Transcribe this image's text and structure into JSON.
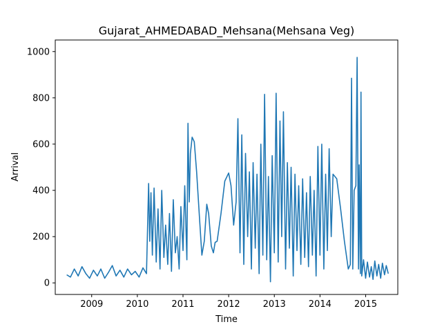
{
  "chart_data": {
    "type": "line",
    "title": "Gujarat_AHMEDABAD_Mehsana(Mehsana Veg)",
    "xlabel": "Time",
    "ylabel": "Arrival",
    "xlim": [
      "2008-03-15",
      "2015-09-15"
    ],
    "ylim": [
      -50,
      1050
    ],
    "x_ticks": [
      "2009",
      "2010",
      "2011",
      "2012",
      "2013",
      "2014",
      "2015"
    ],
    "y_ticks": [
      0,
      200,
      400,
      600,
      800,
      1000
    ],
    "grid": false,
    "legend": "none",
    "series": [
      {
        "color": "#1f77b4",
        "points": [
          [
            "2008-06-15",
            35
          ],
          [
            "2008-07-15",
            25
          ],
          [
            "2008-08-15",
            60
          ],
          [
            "2008-09-15",
            30
          ],
          [
            "2008-10-15",
            70
          ],
          [
            "2008-11-15",
            40
          ],
          [
            "2008-12-15",
            20
          ],
          [
            "2009-01-15",
            55
          ],
          [
            "2009-02-15",
            30
          ],
          [
            "2009-03-15",
            60
          ],
          [
            "2009-04-15",
            20
          ],
          [
            "2009-05-15",
            45
          ],
          [
            "2009-06-15",
            75
          ],
          [
            "2009-07-15",
            30
          ],
          [
            "2009-08-15",
            55
          ],
          [
            "2009-09-15",
            25
          ],
          [
            "2009-10-15",
            60
          ],
          [
            "2009-11-15",
            35
          ],
          [
            "2009-12-15",
            50
          ],
          [
            "2010-01-15",
            25
          ],
          [
            "2010-02-15",
            65
          ],
          [
            "2010-03-15",
            40
          ],
          [
            "2010-04-01",
            430
          ],
          [
            "2010-04-10",
            180
          ],
          [
            "2010-04-20",
            390
          ],
          [
            "2010-05-01",
            120
          ],
          [
            "2010-05-15",
            410
          ],
          [
            "2010-06-01",
            90
          ],
          [
            "2010-06-15",
            320
          ],
          [
            "2010-07-01",
            60
          ],
          [
            "2010-07-15",
            400
          ],
          [
            "2010-08-01",
            110
          ],
          [
            "2010-08-15",
            250
          ],
          [
            "2010-09-01",
            80
          ],
          [
            "2010-09-15",
            300
          ],
          [
            "2010-10-01",
            50
          ],
          [
            "2010-10-15",
            360
          ],
          [
            "2010-11-01",
            130
          ],
          [
            "2010-11-15",
            200
          ],
          [
            "2010-12-01",
            60
          ],
          [
            "2010-12-15",
            330
          ],
          [
            "2011-01-01",
            140
          ],
          [
            "2011-01-15",
            420
          ],
          [
            "2011-02-01",
            100
          ],
          [
            "2011-02-10",
            690
          ],
          [
            "2011-02-20",
            350
          ],
          [
            "2011-03-01",
            560
          ],
          [
            "2011-03-15",
            630
          ],
          [
            "2011-04-01",
            610
          ],
          [
            "2011-04-20",
            480
          ],
          [
            "2011-05-15",
            260
          ],
          [
            "2011-06-01",
            120
          ],
          [
            "2011-06-20",
            180
          ],
          [
            "2011-07-10",
            340
          ],
          [
            "2011-07-25",
            300
          ],
          [
            "2011-08-15",
            160
          ],
          [
            "2011-09-01",
            130
          ],
          [
            "2011-09-15",
            175
          ],
          [
            "2011-10-01",
            180
          ],
          [
            "2011-11-01",
            300
          ],
          [
            "2011-12-01",
            440
          ],
          [
            "2012-01-01",
            475
          ],
          [
            "2012-01-20",
            420
          ],
          [
            "2012-02-10",
            250
          ],
          [
            "2012-03-01",
            350
          ],
          [
            "2012-03-15",
            710
          ],
          [
            "2012-04-01",
            130
          ],
          [
            "2012-04-15",
            640
          ],
          [
            "2012-05-01",
            80
          ],
          [
            "2012-05-15",
            560
          ],
          [
            "2012-06-01",
            200
          ],
          [
            "2012-06-15",
            480
          ],
          [
            "2012-07-01",
            60
          ],
          [
            "2012-07-15",
            520
          ],
          [
            "2012-08-01",
            150
          ],
          [
            "2012-08-15",
            470
          ],
          [
            "2012-09-01",
            40
          ],
          [
            "2012-09-15",
            600
          ],
          [
            "2012-10-01",
            120
          ],
          [
            "2012-10-15",
            815
          ],
          [
            "2012-11-01",
            100
          ],
          [
            "2012-11-15",
            460
          ],
          [
            "2012-12-01",
            5
          ],
          [
            "2012-12-15",
            550
          ],
          [
            "2013-01-01",
            130
          ],
          [
            "2013-01-15",
            820
          ],
          [
            "2013-02-01",
            90
          ],
          [
            "2013-02-15",
            700
          ],
          [
            "2013-03-01",
            200
          ],
          [
            "2013-03-15",
            740
          ],
          [
            "2013-04-01",
            60
          ],
          [
            "2013-04-15",
            520
          ],
          [
            "2013-05-01",
            150
          ],
          [
            "2013-05-15",
            500
          ],
          [
            "2013-06-01",
            30
          ],
          [
            "2013-06-15",
            470
          ],
          [
            "2013-07-01",
            140
          ],
          [
            "2013-07-15",
            420
          ],
          [
            "2013-08-01",
            80
          ],
          [
            "2013-08-15",
            450
          ],
          [
            "2013-09-01",
            110
          ],
          [
            "2013-09-15",
            390
          ],
          [
            "2013-10-01",
            70
          ],
          [
            "2013-10-15",
            460
          ],
          [
            "2013-11-01",
            120
          ],
          [
            "2013-11-15",
            400
          ],
          [
            "2013-12-01",
            30
          ],
          [
            "2013-12-15",
            590
          ],
          [
            "2014-01-01",
            120
          ],
          [
            "2014-01-15",
            600
          ],
          [
            "2014-02-01",
            60
          ],
          [
            "2014-02-15",
            470
          ],
          [
            "2014-03-01",
            140
          ],
          [
            "2014-03-15",
            580
          ],
          [
            "2014-04-01",
            200
          ],
          [
            "2014-04-15",
            470
          ],
          [
            "2014-05-15",
            450
          ],
          [
            "2014-06-15",
            320
          ],
          [
            "2014-07-15",
            180
          ],
          [
            "2014-08-15",
            60
          ],
          [
            "2014-09-01",
            80
          ],
          [
            "2014-09-10",
            885
          ],
          [
            "2014-09-20",
            60
          ],
          [
            "2014-10-01",
            400
          ],
          [
            "2014-10-15",
            420
          ],
          [
            "2014-10-25",
            975
          ],
          [
            "2014-11-05",
            60
          ],
          [
            "2014-11-10",
            510
          ],
          [
            "2014-11-20",
            40
          ],
          [
            "2014-11-25",
            825
          ],
          [
            "2014-12-01",
            30
          ],
          [
            "2014-12-15",
            100
          ],
          [
            "2015-01-01",
            20
          ],
          [
            "2015-01-15",
            90
          ],
          [
            "2015-02-01",
            25
          ],
          [
            "2015-02-15",
            70
          ],
          [
            "2015-03-01",
            15
          ],
          [
            "2015-03-15",
            95
          ],
          [
            "2015-04-01",
            30
          ],
          [
            "2015-04-15",
            80
          ],
          [
            "2015-05-01",
            20
          ],
          [
            "2015-05-15",
            85
          ],
          [
            "2015-06-01",
            35
          ],
          [
            "2015-06-15",
            75
          ],
          [
            "2015-07-01",
            40
          ]
        ]
      }
    ]
  }
}
